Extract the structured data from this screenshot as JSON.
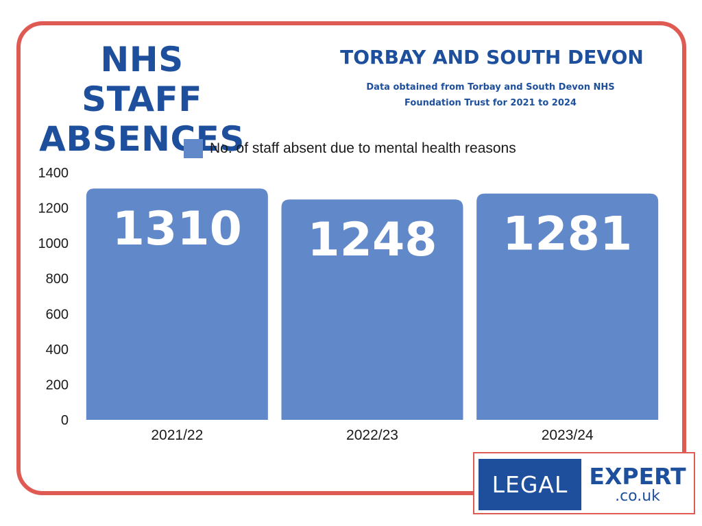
{
  "header": {
    "title_line1": "NHS STAFF",
    "title_line2": "ABSENCES",
    "subtitle": "TORBAY AND SOUTH DEVON",
    "source_line1": "Data obtained from Torbay and South Devon NHS",
    "source_line2": "Foundation Trust for 2021 to 2024"
  },
  "chart_data": {
    "type": "bar",
    "categories": [
      "2021/22",
      "2022/23",
      "2023/24"
    ],
    "series": [
      {
        "name": "No. of staff absent due to mental health reasons",
        "values": [
          1310,
          1248,
          1281
        ]
      }
    ],
    "data_labels": [
      "1310",
      "1248",
      "1281"
    ],
    "yticks": [
      "0",
      "200",
      "400",
      "600",
      "800",
      "1000",
      "1200",
      "1400"
    ],
    "ylim": [
      0,
      1400
    ],
    "grid": false,
    "legend_position": "top",
    "bar_color": "#6188c8"
  },
  "logo": {
    "left_text": "LEGAL",
    "right_text": "EXPERT",
    "domain_text": ".co.uk"
  },
  "colors": {
    "accent_border": "#e05a54",
    "title_blue": "#1d4f9c",
    "bar": "#6188c8"
  }
}
